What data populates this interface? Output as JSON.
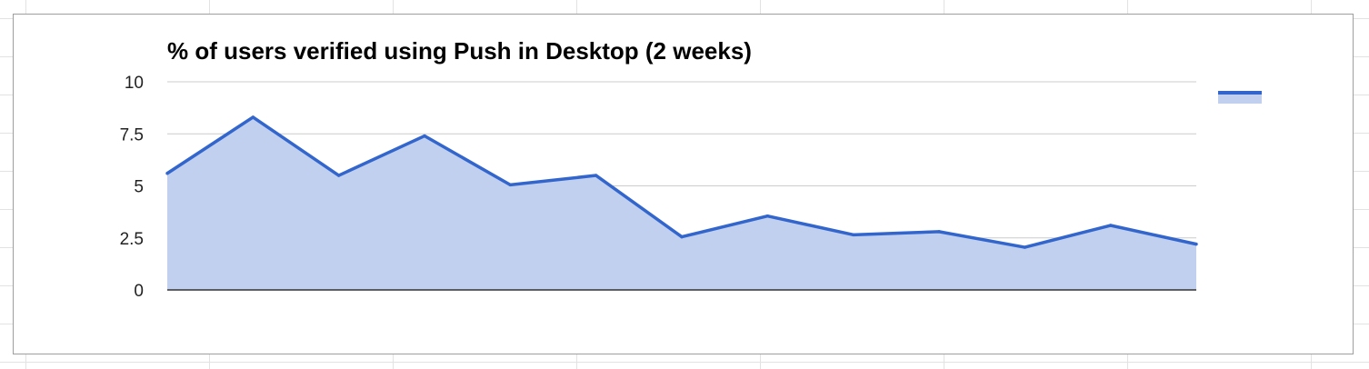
{
  "chart_data": {
    "type": "area",
    "title": "% of users verified using Push in Desktop (2 weeks)",
    "xlabel": "",
    "ylabel": "",
    "x": [
      1,
      2,
      3,
      4,
      5,
      6,
      7,
      8,
      9,
      10,
      11,
      12,
      13
    ],
    "series": [
      {
        "values": [
          5.6,
          8.3,
          5.5,
          7.4,
          5.05,
          5.5,
          2.55,
          3.55,
          2.65,
          2.8,
          2.05,
          3.1,
          2.2
        ]
      }
    ],
    "yticks": [
      "0",
      "2.5",
      "5",
      "7.5",
      "10"
    ],
    "ylim": [
      0,
      10
    ],
    "grid": true,
    "legend": "right",
    "colors": {
      "line": "#3366cc",
      "fill": "#c1d0ef",
      "grid": "#cccccc",
      "baseline": "#333333"
    }
  }
}
